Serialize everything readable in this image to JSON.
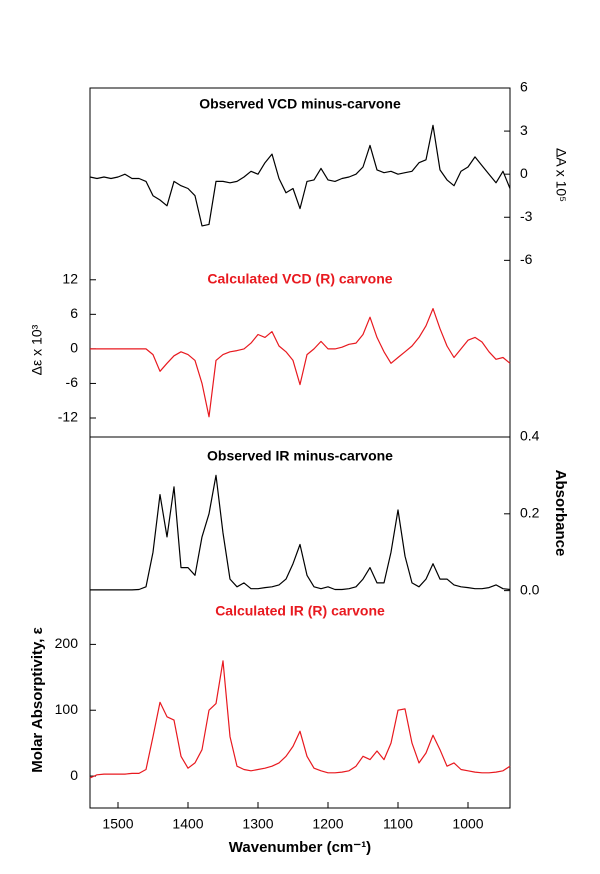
{
  "chart_data": [
    {
      "type": "line",
      "x": [
        1540,
        1530,
        1520,
        1510,
        1500,
        1490,
        1480,
        1470,
        1460,
        1450,
        1440,
        1430,
        1420,
        1410,
        1400,
        1390,
        1380,
        1370,
        1360,
        1350,
        1340,
        1330,
        1320,
        1310,
        1300,
        1290,
        1280,
        1270,
        1260,
        1250,
        1240,
        1230,
        1220,
        1210,
        1200,
        1190,
        1180,
        1170,
        1160,
        1150,
        1140,
        1130,
        1120,
        1110,
        1100,
        1090,
        1080,
        1070,
        1060,
        1050,
        1040,
        1030,
        1020,
        1010,
        1000,
        990,
        980,
        970,
        960,
        950,
        940
      ],
      "xlim": [
        1540,
        940
      ],
      "ylim": [
        -15.3,
        45.3
      ],
      "yticks": [
        12,
        6,
        0,
        -6,
        -12
      ],
      "ylabel": "Δε x 10³",
      "y2lim": [
        -18.3,
        6
      ],
      "y2ticks": [
        6,
        3,
        0,
        -3,
        -6
      ],
      "y2label": "ΔA x 10⁵",
      "series": [
        {
          "name": "Observed VCD minus-carvone",
          "color": "#000000",
          "axis": "y2",
          "values": [
            -0.2,
            -0.3,
            -0.2,
            -0.3,
            -0.2,
            0,
            -0.3,
            -0.3,
            -0.5,
            -1.5,
            -1.8,
            -2.2,
            -0.5,
            -0.8,
            -1.0,
            -1.5,
            -3.6,
            -3.5,
            -0.5,
            -0.5,
            -0.6,
            -0.5,
            -0.2,
            0.2,
            0,
            0.8,
            1.4,
            -0.3,
            -1.3,
            -1.0,
            -2.4,
            -0.5,
            -0.4,
            0.4,
            -0.4,
            -0.5,
            -0.3,
            -0.2,
            0,
            0.5,
            2.0,
            0.3,
            0.1,
            0.2,
            0,
            0.1,
            0.2,
            0.8,
            1.0,
            3.4,
            0.3,
            -0.4,
            -0.8,
            0.2,
            0.5,
            1.2,
            0.6,
            0,
            -0.6,
            0.2,
            -1.0
          ]
        },
        {
          "name": "Calculated VCD (R) carvone",
          "color": "#e8191f",
          "axis": "y",
          "values": [
            0,
            0,
            0,
            0,
            0,
            0,
            0,
            0,
            0,
            -1,
            -3.9,
            -2.5,
            -1.2,
            -0.5,
            -1,
            -2,
            -6,
            -11.8,
            -2,
            -1,
            -0.5,
            -0.3,
            0,
            1,
            2.5,
            2,
            3,
            0.5,
            -0.5,
            -2,
            -6.2,
            -1,
            0,
            1.3,
            0,
            0,
            0.3,
            0.8,
            1,
            2.5,
            5.5,
            2,
            -0.5,
            -2.5,
            -1.5,
            -0.5,
            0.5,
            2,
            4,
            7,
            3.5,
            0.5,
            -1.5,
            0,
            1.5,
            2,
            1.2,
            -0.5,
            -1.8,
            -1.5,
            -2.5
          ]
        }
      ]
    },
    {
      "type": "line",
      "x": [
        1540,
        1530,
        1520,
        1510,
        1500,
        1490,
        1480,
        1470,
        1460,
        1450,
        1440,
        1430,
        1420,
        1410,
        1400,
        1390,
        1380,
        1370,
        1360,
        1350,
        1340,
        1330,
        1320,
        1310,
        1300,
        1290,
        1280,
        1270,
        1260,
        1250,
        1240,
        1230,
        1220,
        1210,
        1200,
        1190,
        1180,
        1170,
        1160,
        1150,
        1140,
        1130,
        1120,
        1110,
        1100,
        1090,
        1080,
        1070,
        1060,
        1050,
        1040,
        1030,
        1020,
        1010,
        1000,
        990,
        980,
        970,
        960,
        950,
        940
      ],
      "xlim": [
        1540,
        940
      ],
      "xticks": [
        1500,
        1400,
        1300,
        1200,
        1100,
        1000
      ],
      "xlabel": "Wavenumber (cm⁻¹)",
      "ylim": [
        -48.5,
        515
      ],
      "yticks": [
        200,
        100,
        0
      ],
      "ylabel": "Molar Absorptivity, ε",
      "y2lim": [
        -0.566,
        0.4
      ],
      "y2ticks": [
        0.4,
        0.2,
        {
          "value": 0,
          "label": "0.0"
        }
      ],
      "y2label": "Absorbance",
      "series": [
        {
          "name": "Observed IR minus-carvone",
          "color": "#000000",
          "axis": "y2",
          "values": [
            0.002,
            0.002,
            0.002,
            0.002,
            0.002,
            0.002,
            0.002,
            0.003,
            0.01,
            0.1,
            0.25,
            0.14,
            0.27,
            0.06,
            0.06,
            0.04,
            0.14,
            0.2,
            0.3,
            0.15,
            0.03,
            0.01,
            0.02,
            0.005,
            0.005,
            0.008,
            0.01,
            0.015,
            0.03,
            0.07,
            0.12,
            0.04,
            0.01,
            0.005,
            0.01,
            0.003,
            0.003,
            0.005,
            0.01,
            0.03,
            0.06,
            0.02,
            0.02,
            0.1,
            0.21,
            0.09,
            0.02,
            0.01,
            0.03,
            0.07,
            0.03,
            0.03,
            0.015,
            0.01,
            0.008,
            0.005,
            0.005,
            0.008,
            0.015,
            0.005,
            0.003
          ]
        },
        {
          "name": "Calculated IR (R) carvone",
          "color": "#e8191f",
          "axis": "y",
          "values": [
            -3,
            2,
            3,
            3,
            3,
            3,
            4,
            4,
            10,
            60,
            112,
            90,
            85,
            30,
            12,
            20,
            40,
            100,
            110,
            175,
            60,
            15,
            10,
            8,
            10,
            12,
            15,
            20,
            30,
            45,
            68,
            30,
            12,
            8,
            5,
            5,
            6,
            8,
            15,
            30,
            25,
            38,
            25,
            50,
            100,
            102,
            50,
            20,
            35,
            62,
            40,
            15,
            20,
            10,
            8,
            6,
            5,
            5,
            6,
            8,
            15
          ]
        }
      ]
    }
  ]
}
